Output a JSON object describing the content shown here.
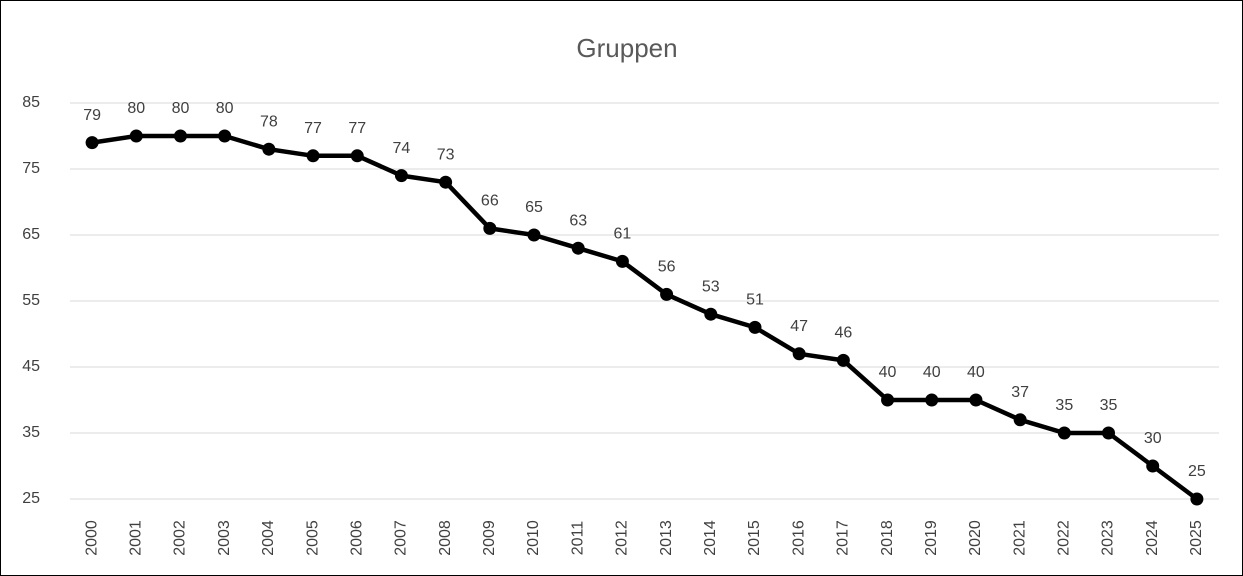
{
  "chart_data": {
    "type": "line",
    "title": "Gruppen",
    "categories": [
      "2000",
      "2001",
      "2002",
      "2003",
      "2004",
      "2005",
      "2006",
      "2007",
      "2008",
      "2009",
      "2010",
      "2011",
      "2012",
      "2013",
      "2014",
      "2015",
      "2016",
      "2017",
      "2018",
      "2019",
      "2020",
      "2021",
      "2022",
      "2023",
      "2024",
      "2025"
    ],
    "values": [
      79,
      80,
      80,
      80,
      78,
      77,
      77,
      74,
      73,
      66,
      65,
      63,
      61,
      56,
      53,
      51,
      47,
      46,
      40,
      40,
      40,
      37,
      35,
      35,
      30,
      25
    ],
    "color": "#000000",
    "ylim": [
      25,
      85
    ],
    "yticks": [
      25,
      35,
      45,
      55,
      65,
      75,
      85
    ],
    "grid": true
  }
}
